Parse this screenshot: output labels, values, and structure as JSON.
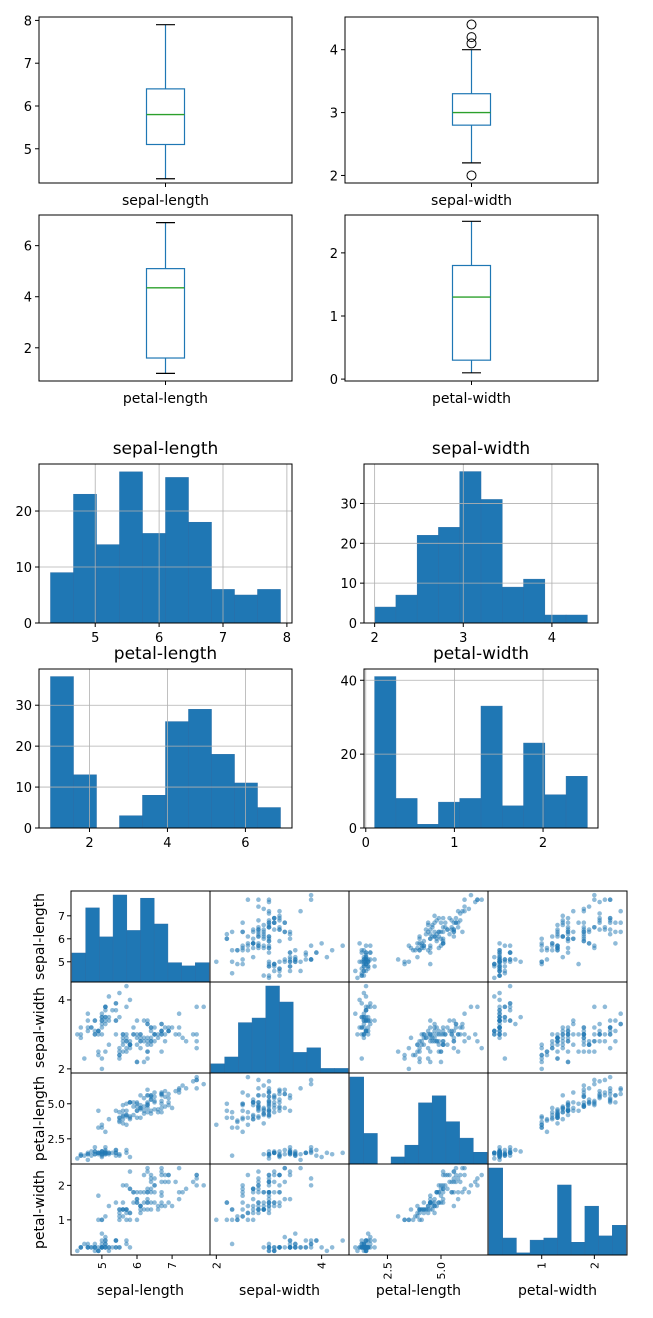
{
  "colors": {
    "box": "#1f77b4",
    "median": "#2ca02c",
    "bar": "#1f77b4",
    "bar_edge": "#2a6fa8",
    "scatter": "#1f77b4",
    "grid": "#b0b0b0"
  },
  "chart_data": [
    {
      "type": "box",
      "label": "sepal-length",
      "yticks": [
        5,
        6,
        7,
        8
      ],
      "ylim": [
        4.2,
        8.08
      ],
      "whisker_low": 4.3,
      "q1": 5.1,
      "median": 5.8,
      "q3": 6.4,
      "whisker_high": 7.9,
      "outliers": []
    },
    {
      "type": "box",
      "label": "sepal-width",
      "yticks": [
        2,
        3,
        4
      ],
      "ylim": [
        1.88,
        4.52
      ],
      "whisker_low": 2.2,
      "q1": 2.8,
      "median": 3.0,
      "q3": 3.3,
      "whisker_high": 4.0,
      "outliers": [
        4.1,
        4.2,
        4.4,
        2.0
      ]
    },
    {
      "type": "box",
      "label": "petal-length",
      "yticks": [
        2,
        4,
        6
      ],
      "ylim": [
        0.7,
        7.2
      ],
      "whisker_low": 1.0,
      "q1": 1.6,
      "median": 4.35,
      "q3": 5.1,
      "whisker_high": 6.9,
      "outliers": []
    },
    {
      "type": "box",
      "label": "petal-width",
      "yticks": [
        0,
        1,
        2
      ],
      "ylim": [
        -0.03,
        2.6
      ],
      "whisker_low": 0.1,
      "q1": 0.3,
      "median": 1.3,
      "q3": 1.8,
      "whisker_high": 2.5,
      "outliers": []
    },
    {
      "type": "bar",
      "title": "sepal-length",
      "bins_start": 4.3,
      "bin_width": 0.36,
      "counts": [
        9,
        23,
        14,
        27,
        16,
        26,
        18,
        6,
        5,
        6
      ],
      "xticks": [
        5,
        6,
        7,
        8
      ],
      "xlim": [
        4.12,
        8.08
      ],
      "yticks": [
        0,
        10,
        20
      ],
      "ylim": [
        0,
        28.4
      ]
    },
    {
      "type": "bar",
      "title": "sepal-width",
      "bins_start": 2.0,
      "bin_width": 0.24,
      "counts": [
        4,
        7,
        22,
        24,
        38,
        31,
        9,
        11,
        2,
        2
      ],
      "xticks": [
        2,
        3,
        4
      ],
      "xlim": [
        1.88,
        4.52
      ],
      "yticks": [
        0,
        10,
        20,
        30
      ],
      "ylim": [
        0,
        39.9
      ]
    },
    {
      "type": "bar",
      "title": "petal-length",
      "bins_start": 1.0,
      "bin_width": 0.59,
      "counts": [
        37,
        13,
        0,
        3,
        8,
        26,
        29,
        18,
        11,
        5
      ],
      "xticks": [
        2,
        4,
        6
      ],
      "xlim": [
        0.705,
        7.195
      ],
      "yticks": [
        0,
        10,
        20,
        30
      ],
      "ylim": [
        0,
        38.85
      ]
    },
    {
      "type": "bar",
      "title": "petal-width",
      "bins_start": 0.1,
      "bin_width": 0.24,
      "counts": [
        41,
        8,
        1,
        7,
        8,
        33,
        6,
        23,
        9,
        14
      ],
      "xticks": [
        0,
        1,
        2
      ],
      "xlim": [
        -0.02,
        2.62
      ],
      "yticks": [
        0,
        20,
        40
      ],
      "ylim": [
        0,
        43.05
      ]
    },
    {
      "type": "scatter",
      "variables": [
        {
          "name": "sepal-length",
          "min": 4.3,
          "max": 7.9,
          "ticks": [
            5,
            6,
            7
          ],
          "ytick_labels": [
            "5",
            "6",
            "7"
          ],
          "xtick_labels": [
            "5",
            "6",
            "7"
          ]
        },
        {
          "name": "sepal-width",
          "min": 2.0,
          "max": 4.4,
          "ticks": [
            2,
            4
          ],
          "ytick_labels": [
            "2",
            "4"
          ],
          "xtick_labels": [
            "2",
            "4"
          ]
        },
        {
          "name": "petal-length",
          "min": 1.0,
          "max": 6.9,
          "ticks": [
            2.5,
            5.0
          ],
          "ytick_labels": [
            "2.5",
            "5.0"
          ],
          "xtick_labels": [
            "2.5",
            "5.0"
          ]
        },
        {
          "name": "petal-width",
          "min": 0.1,
          "max": 2.5,
          "ticks": [
            1,
            2
          ],
          "ytick_labels": [
            "1",
            "2"
          ],
          "xtick_labels": [
            "1",
            "2"
          ]
        }
      ],
      "histograms": [
        [
          9,
          23,
          14,
          27,
          16,
          26,
          18,
          6,
          5,
          6
        ],
        [
          4,
          7,
          22,
          24,
          38,
          31,
          9,
          11,
          2,
          2
        ],
        [
          37,
          13,
          0,
          3,
          8,
          26,
          29,
          18,
          11,
          5
        ],
        [
          41,
          8,
          1,
          7,
          8,
          33,
          6,
          23,
          9,
          14
        ]
      ],
      "samples": [
        [
          5.1,
          3.5,
          1.4,
          0.2
        ],
        [
          4.9,
          3.0,
          1.4,
          0.2
        ],
        [
          4.7,
          3.2,
          1.3,
          0.2
        ],
        [
          4.6,
          3.1,
          1.5,
          0.2
        ],
        [
          5.0,
          3.6,
          1.4,
          0.2
        ],
        [
          5.4,
          3.9,
          1.7,
          0.4
        ],
        [
          4.6,
          3.4,
          1.4,
          0.3
        ],
        [
          5.0,
          3.4,
          1.5,
          0.2
        ],
        [
          4.4,
          2.9,
          1.4,
          0.2
        ],
        [
          4.9,
          3.1,
          1.5,
          0.1
        ],
        [
          5.4,
          3.7,
          1.5,
          0.2
        ],
        [
          4.8,
          3.4,
          1.6,
          0.2
        ],
        [
          4.8,
          3.0,
          1.4,
          0.1
        ],
        [
          4.3,
          3.0,
          1.1,
          0.1
        ],
        [
          5.8,
          4.0,
          1.2,
          0.2
        ],
        [
          5.7,
          4.4,
          1.5,
          0.4
        ],
        [
          5.4,
          3.9,
          1.3,
          0.4
        ],
        [
          5.1,
          3.5,
          1.4,
          0.3
        ],
        [
          5.7,
          3.8,
          1.7,
          0.3
        ],
        [
          5.1,
          3.8,
          1.5,
          0.3
        ],
        [
          5.4,
          3.4,
          1.7,
          0.2
        ],
        [
          5.1,
          3.7,
          1.5,
          0.4
        ],
        [
          4.6,
          3.6,
          1.0,
          0.2
        ],
        [
          5.1,
          3.3,
          1.7,
          0.5
        ],
        [
          4.8,
          3.4,
          1.9,
          0.2
        ],
        [
          5.0,
          3.0,
          1.6,
          0.2
        ],
        [
          5.0,
          3.4,
          1.6,
          0.4
        ],
        [
          5.2,
          3.5,
          1.5,
          0.2
        ],
        [
          5.2,
          3.4,
          1.4,
          0.2
        ],
        [
          4.7,
          3.2,
          1.6,
          0.2
        ],
        [
          4.8,
          3.1,
          1.6,
          0.2
        ],
        [
          5.4,
          3.4,
          1.5,
          0.4
        ],
        [
          5.2,
          4.1,
          1.5,
          0.1
        ],
        [
          5.5,
          4.2,
          1.4,
          0.2
        ],
        [
          4.9,
          3.1,
          1.5,
          0.1
        ],
        [
          5.0,
          3.2,
          1.2,
          0.2
        ],
        [
          5.5,
          3.5,
          1.3,
          0.2
        ],
        [
          4.9,
          3.1,
          1.5,
          0.1
        ],
        [
          4.4,
          3.0,
          1.3,
          0.2
        ],
        [
          5.1,
          3.4,
          1.5,
          0.2
        ],
        [
          5.0,
          3.5,
          1.3,
          0.3
        ],
        [
          4.5,
          2.3,
          1.3,
          0.3
        ],
        [
          4.4,
          3.2,
          1.3,
          0.2
        ],
        [
          5.0,
          3.5,
          1.6,
          0.6
        ],
        [
          5.1,
          3.8,
          1.9,
          0.4
        ],
        [
          4.8,
          3.0,
          1.4,
          0.3
        ],
        [
          5.1,
          3.8,
          1.6,
          0.2
        ],
        [
          4.6,
          3.2,
          1.4,
          0.2
        ],
        [
          5.3,
          3.7,
          1.5,
          0.2
        ],
        [
          5.0,
          3.3,
          1.4,
          0.2
        ],
        [
          7.0,
          3.2,
          4.7,
          1.4
        ],
        [
          6.4,
          3.2,
          4.5,
          1.5
        ],
        [
          6.9,
          3.1,
          4.9,
          1.5
        ],
        [
          5.5,
          2.3,
          4.0,
          1.3
        ],
        [
          6.5,
          2.8,
          4.6,
          1.5
        ],
        [
          5.7,
          2.8,
          4.5,
          1.3
        ],
        [
          6.3,
          3.3,
          4.7,
          1.6
        ],
        [
          4.9,
          2.4,
          3.3,
          1.0
        ],
        [
          6.6,
          2.9,
          4.6,
          1.3
        ],
        [
          5.2,
          2.7,
          3.9,
          1.4
        ],
        [
          5.0,
          2.0,
          3.5,
          1.0
        ],
        [
          5.9,
          3.0,
          4.2,
          1.5
        ],
        [
          6.0,
          2.2,
          4.0,
          1.0
        ],
        [
          6.1,
          2.9,
          4.7,
          1.4
        ],
        [
          5.6,
          2.9,
          3.6,
          1.3
        ],
        [
          6.7,
          3.1,
          4.4,
          1.4
        ],
        [
          5.6,
          3.0,
          4.5,
          1.5
        ],
        [
          5.8,
          2.7,
          4.1,
          1.0
        ],
        [
          6.2,
          2.2,
          4.5,
          1.5
        ],
        [
          5.6,
          2.5,
          3.9,
          1.1
        ],
        [
          5.9,
          3.2,
          4.8,
          1.8
        ],
        [
          6.1,
          2.8,
          4.0,
          1.3
        ],
        [
          6.3,
          2.5,
          4.9,
          1.5
        ],
        [
          6.1,
          2.8,
          4.7,
          1.2
        ],
        [
          6.4,
          2.9,
          4.3,
          1.3
        ],
        [
          6.6,
          3.0,
          4.4,
          1.4
        ],
        [
          6.8,
          2.8,
          4.8,
          1.4
        ],
        [
          6.7,
          3.0,
          5.0,
          1.7
        ],
        [
          6.0,
          2.9,
          4.5,
          1.5
        ],
        [
          5.7,
          2.6,
          3.5,
          1.0
        ],
        [
          5.5,
          2.4,
          3.8,
          1.1
        ],
        [
          5.5,
          2.4,
          3.7,
          1.0
        ],
        [
          5.8,
          2.7,
          3.9,
          1.2
        ],
        [
          6.0,
          2.7,
          5.1,
          1.6
        ],
        [
          5.4,
          3.0,
          4.5,
          1.5
        ],
        [
          6.0,
          3.4,
          4.5,
          1.6
        ],
        [
          6.7,
          3.1,
          4.7,
          1.5
        ],
        [
          6.3,
          2.3,
          4.4,
          1.3
        ],
        [
          5.6,
          3.0,
          4.1,
          1.3
        ],
        [
          5.5,
          2.5,
          4.0,
          1.3
        ],
        [
          5.5,
          2.6,
          4.4,
          1.2
        ],
        [
          6.1,
          3.0,
          4.6,
          1.4
        ],
        [
          5.8,
          2.6,
          4.0,
          1.2
        ],
        [
          5.0,
          2.3,
          3.3,
          1.0
        ],
        [
          5.6,
          2.7,
          4.2,
          1.3
        ],
        [
          5.7,
          3.0,
          4.2,
          1.2
        ],
        [
          5.7,
          2.9,
          4.2,
          1.3
        ],
        [
          6.2,
          2.9,
          4.3,
          1.3
        ],
        [
          5.1,
          2.5,
          3.0,
          1.1
        ],
        [
          5.7,
          2.8,
          4.1,
          1.3
        ],
        [
          6.3,
          3.3,
          6.0,
          2.5
        ],
        [
          5.8,
          2.7,
          5.1,
          1.9
        ],
        [
          7.1,
          3.0,
          5.9,
          2.1
        ],
        [
          6.3,
          2.9,
          5.6,
          1.8
        ],
        [
          6.5,
          3.0,
          5.8,
          2.2
        ],
        [
          7.6,
          3.0,
          6.6,
          2.1
        ],
        [
          4.9,
          2.5,
          4.5,
          1.7
        ],
        [
          7.3,
          2.9,
          6.3,
          1.8
        ],
        [
          6.7,
          2.5,
          5.8,
          1.8
        ],
        [
          7.2,
          3.6,
          6.1,
          2.5
        ],
        [
          6.5,
          3.2,
          5.1,
          2.0
        ],
        [
          6.4,
          2.7,
          5.3,
          1.9
        ],
        [
          6.8,
          3.0,
          5.5,
          2.1
        ],
        [
          5.7,
          2.5,
          5.0,
          2.0
        ],
        [
          5.8,
          2.8,
          5.1,
          2.4
        ],
        [
          6.4,
          3.2,
          5.3,
          2.3
        ],
        [
          6.5,
          3.0,
          5.5,
          1.8
        ],
        [
          7.7,
          3.8,
          6.7,
          2.2
        ],
        [
          7.7,
          2.6,
          6.9,
          2.3
        ],
        [
          6.0,
          2.2,
          5.0,
          1.5
        ],
        [
          6.9,
          3.2,
          5.7,
          2.3
        ],
        [
          5.6,
          2.8,
          4.9,
          2.0
        ],
        [
          7.7,
          2.8,
          6.7,
          2.0
        ],
        [
          6.3,
          2.7,
          4.9,
          1.8
        ],
        [
          6.7,
          3.3,
          5.7,
          2.1
        ],
        [
          7.2,
          3.2,
          6.0,
          1.8
        ],
        [
          6.2,
          2.8,
          4.8,
          1.8
        ],
        [
          6.1,
          3.0,
          4.9,
          1.8
        ],
        [
          6.4,
          2.8,
          5.6,
          2.1
        ],
        [
          7.2,
          3.0,
          5.8,
          1.6
        ],
        [
          7.4,
          2.8,
          6.1,
          1.9
        ],
        [
          7.9,
          3.8,
          6.4,
          2.0
        ],
        [
          6.4,
          2.8,
          5.6,
          2.2
        ],
        [
          6.3,
          2.8,
          5.1,
          1.5
        ],
        [
          6.1,
          2.6,
          5.6,
          1.4
        ],
        [
          7.7,
          3.0,
          6.1,
          2.3
        ],
        [
          6.3,
          3.4,
          5.6,
          2.4
        ],
        [
          6.4,
          3.1,
          5.5,
          1.8
        ],
        [
          6.0,
          3.0,
          4.8,
          1.8
        ],
        [
          6.9,
          3.1,
          5.4,
          2.1
        ],
        [
          6.7,
          3.1,
          5.6,
          2.4
        ],
        [
          6.9,
          3.1,
          5.1,
          2.3
        ],
        [
          5.8,
          2.7,
          5.1,
          1.9
        ],
        [
          6.8,
          3.2,
          5.9,
          2.3
        ],
        [
          6.7,
          3.3,
          5.7,
          2.5
        ],
        [
          6.7,
          3.0,
          5.2,
          2.3
        ],
        [
          6.3,
          2.5,
          5.0,
          1.9
        ],
        [
          6.5,
          3.0,
          5.2,
          2.0
        ],
        [
          6.2,
          3.4,
          5.4,
          2.3
        ],
        [
          5.9,
          3.0,
          5.1,
          1.8
        ]
      ]
    }
  ]
}
